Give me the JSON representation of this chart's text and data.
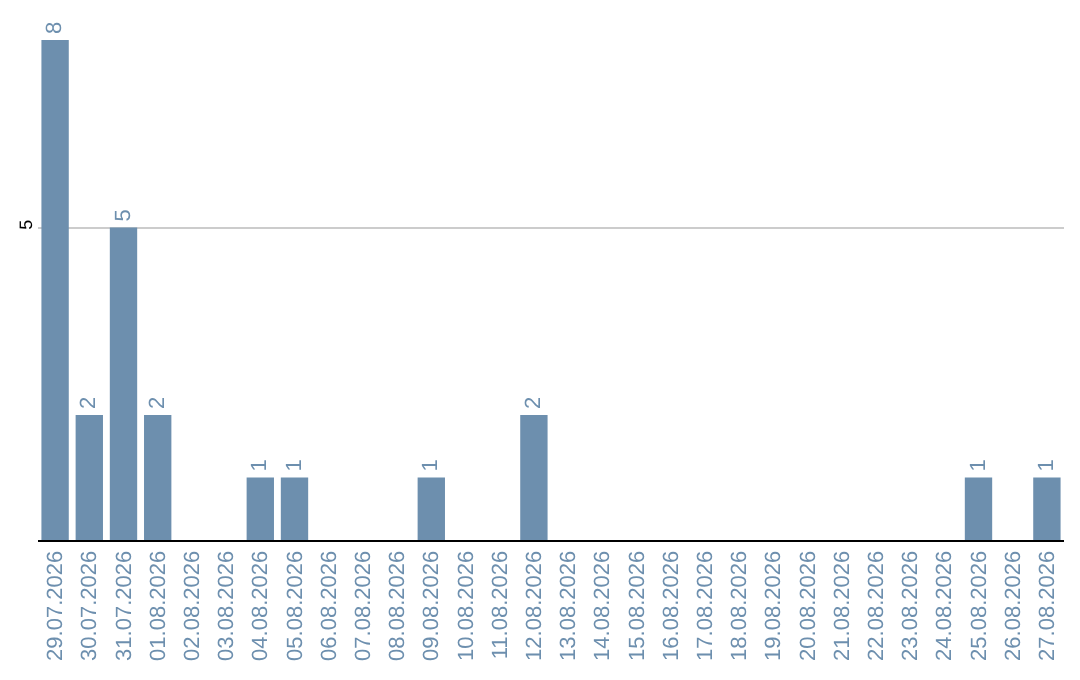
{
  "chart_data": {
    "type": "bar",
    "categories": [
      "29.07.2026",
      "30.07.2026",
      "31.07.2026",
      "01.08.2026",
      "02.08.2026",
      "03.08.2026",
      "04.08.2026",
      "05.08.2026",
      "06.08.2026",
      "07.08.2026",
      "08.08.2026",
      "09.08.2026",
      "10.08.2026",
      "11.08.2026",
      "12.08.2026",
      "13.08.2026",
      "14.08.2026",
      "15.08.2026",
      "16.08.2026",
      "17.08.2026",
      "18.08.2026",
      "19.08.2026",
      "20.08.2026",
      "21.08.2026",
      "22.08.2026",
      "23.08.2026",
      "24.08.2026",
      "25.08.2026",
      "26.08.2026",
      "27.08.2026"
    ],
    "values": [
      8,
      2,
      5,
      2,
      0,
      0,
      1,
      1,
      0,
      0,
      0,
      1,
      0,
      0,
      2,
      0,
      0,
      0,
      0,
      0,
      0,
      0,
      0,
      0,
      0,
      0,
      0,
      1,
      0,
      1
    ],
    "value_labels": [
      "8",
      "2",
      "5",
      "2",
      null,
      null,
      "1",
      "1",
      null,
      null,
      null,
      "1",
      null,
      null,
      "2",
      null,
      null,
      null,
      null,
      null,
      null,
      null,
      null,
      null,
      null,
      null,
      null,
      "1",
      null,
      "1"
    ],
    "color": "#6d8fae",
    "ylim": [
      0,
      8
    ],
    "yticks": [
      5
    ],
    "grid": "y",
    "legend": false
  }
}
